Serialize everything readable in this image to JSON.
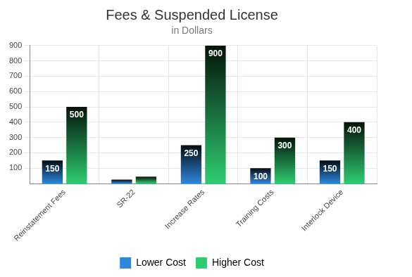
{
  "chart_data": {
    "type": "bar",
    "title": "Fees & Suspended License",
    "subtitle": "in Dollars",
    "categories": [
      "Reinstatement Fees",
      "SR-22",
      "Increase Rates",
      "Training Costs",
      "Interlock Device"
    ],
    "series": [
      {
        "name": "Lower Cost",
        "color": "#2e86de",
        "values": [
          150,
          25,
          250,
          100,
          150
        ],
        "value_labels": [
          "150",
          null,
          "250",
          "100",
          "150"
        ]
      },
      {
        "name": "Higher Cost",
        "color": "#2ecc71",
        "values": [
          500,
          45,
          900,
          300,
          400
        ],
        "value_labels": [
          "500",
          null,
          "900",
          "300",
          "400"
        ]
      }
    ],
    "ylim": [
      0,
      900
    ],
    "yticks": [
      100,
      200,
      300,
      400,
      500,
      600,
      700,
      800,
      900
    ],
    "grid": true,
    "legend": "bottom",
    "data_labels": true
  }
}
